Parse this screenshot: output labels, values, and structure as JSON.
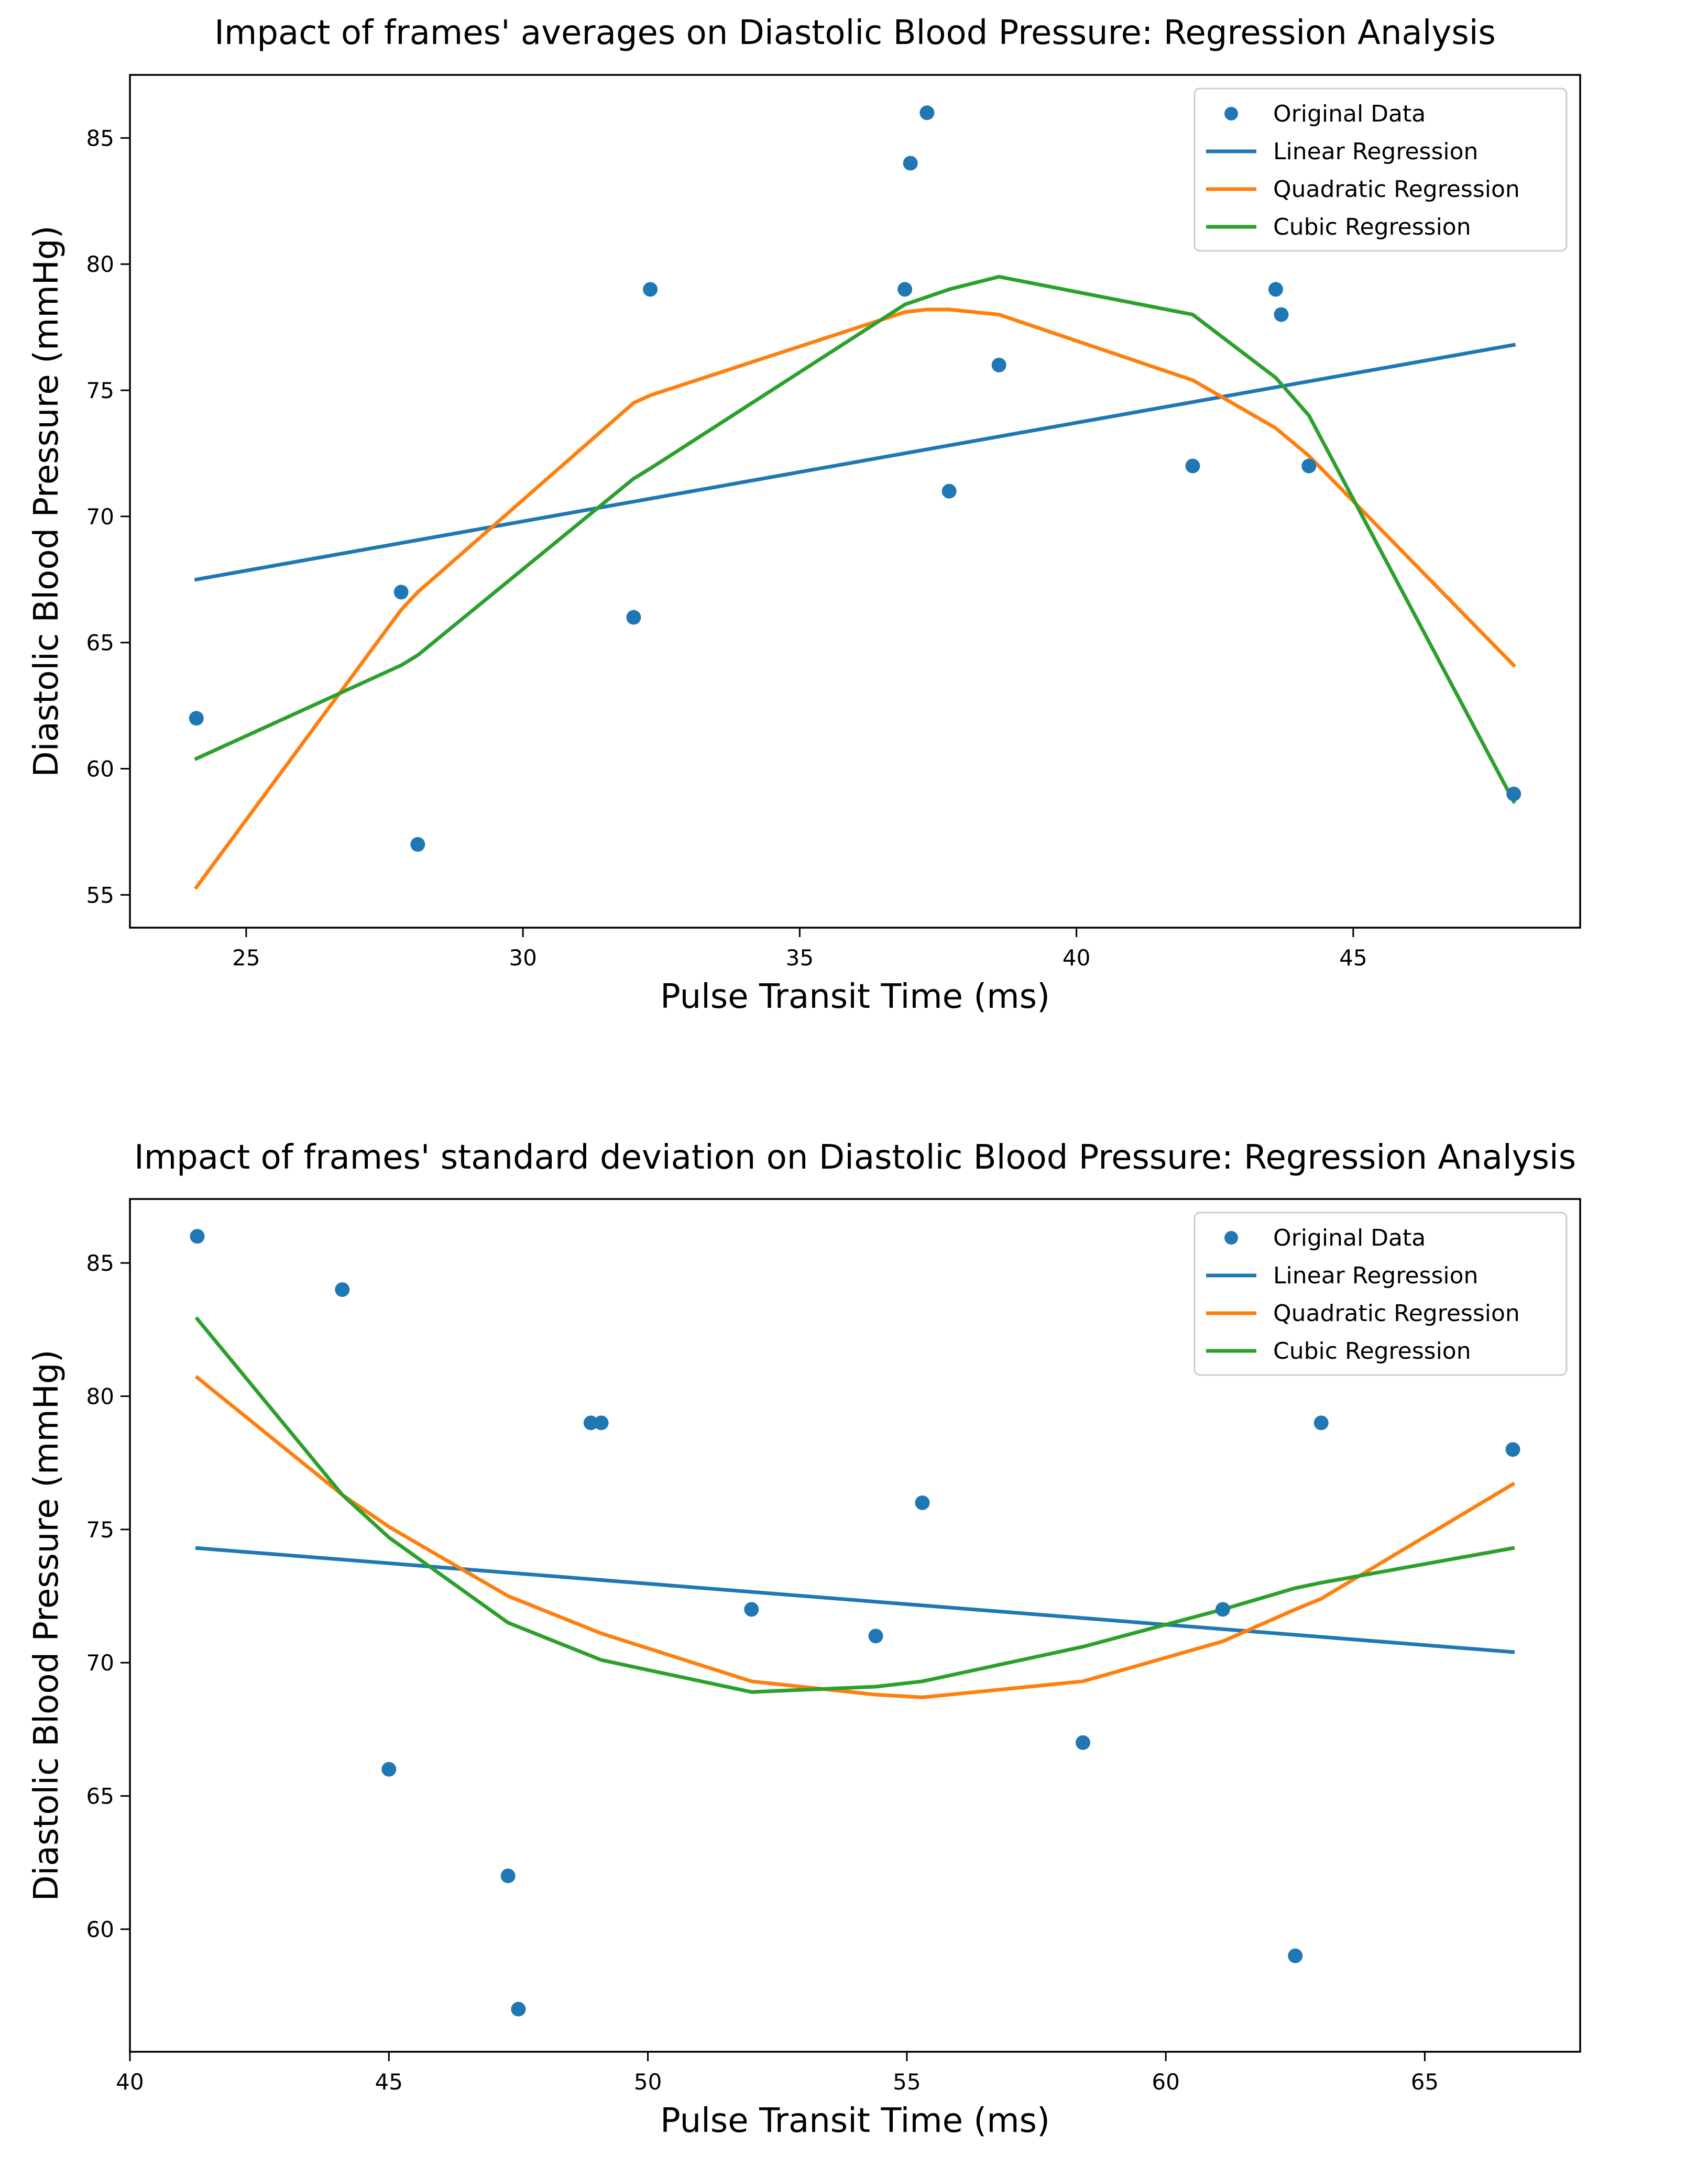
{
  "chart_data": [
    {
      "type": "scatter",
      "title": "Impact of frames' averages on Diastolic Blood Pressure: Regression Analysis",
      "xlabel": "Pulse Transit Time (ms)",
      "ylabel": "Diastolic Blood Pressure (mmHg)",
      "xlim": [
        22.9,
        49.1
      ],
      "ylim": [
        53.7,
        87.5
      ],
      "xticks": [
        25,
        30,
        35,
        40,
        45
      ],
      "yticks": [
        55,
        60,
        65,
        70,
        75,
        80,
        85
      ],
      "grid": false,
      "legend_position": "upper right",
      "legend": [
        "Original Data",
        "Linear Regression",
        "Quadratic Regression",
        "Cubic Regression"
      ],
      "colors": [
        "#1f77b4",
        "#1f77b4",
        "#ff7f0e",
        "#2ca02c"
      ],
      "scatter": {
        "name": "Original Data",
        "x": [
          24.1,
          27.8,
          28.1,
          32.0,
          32.3,
          36.9,
          37.0,
          37.3,
          37.7,
          38.6,
          42.1,
          43.6,
          43.7,
          44.2,
          47.9
        ],
        "y": [
          62,
          67,
          57,
          66,
          79,
          79,
          84,
          86,
          71,
          76,
          72,
          79,
          78,
          72,
          59
        ]
      },
      "series": [
        {
          "name": "Linear Regression",
          "x": [
            24.1,
            47.9
          ],
          "y": [
            67.5,
            76.8
          ]
        },
        {
          "name": "Quadratic Regression",
          "x": [
            24.1,
            27.8,
            28.1,
            32.0,
            32.3,
            36.9,
            37.3,
            37.7,
            38.6,
            42.1,
            43.6,
            44.2,
            47.9
          ],
          "y": [
            55.3,
            66.3,
            67.0,
            74.5,
            74.8,
            78.1,
            78.2,
            78.2,
            78.0,
            75.4,
            73.5,
            72.4,
            64.1
          ]
        },
        {
          "name": "Cubic Regression",
          "x": [
            24.1,
            27.8,
            28.1,
            32.0,
            32.3,
            36.9,
            37.3,
            37.7,
            38.6,
            42.1,
            43.6,
            44.2,
            47.9
          ],
          "y": [
            60.4,
            64.1,
            64.5,
            71.5,
            71.9,
            78.4,
            78.7,
            79.0,
            79.5,
            78.0,
            75.5,
            74.0,
            58.7
          ]
        }
      ]
    },
    {
      "type": "scatter",
      "title": "Impact of frames' standard deviation on Diastolic Blood Pressure: Regression Analysis",
      "xlabel": "Pulse Transit Time (ms)",
      "ylabel": "Diastolic Blood Pressure (mmHg)",
      "xlim": [
        40.0,
        68.0
      ],
      "ylim": [
        55.4,
        87.4
      ],
      "xticks": [
        40,
        45,
        50,
        55,
        60,
        65
      ],
      "yticks": [
        60,
        65,
        70,
        75,
        80,
        85
      ],
      "grid": false,
      "legend_position": "upper right",
      "legend": [
        "Original Data",
        "Linear Regression",
        "Quadratic Regression",
        "Cubic Regression"
      ],
      "colors": [
        "#1f77b4",
        "#1f77b4",
        "#ff7f0e",
        "#2ca02c"
      ],
      "scatter": {
        "name": "Original Data",
        "x": [
          41.3,
          44.1,
          45.0,
          47.3,
          47.5,
          48.9,
          49.1,
          52.0,
          54.4,
          55.3,
          58.4,
          61.1,
          62.5,
          63.0,
          66.7
        ],
        "y": [
          86,
          84,
          66,
          62,
          57,
          79,
          79,
          72,
          71,
          76,
          67,
          72,
          59,
          79,
          78
        ]
      },
      "series": [
        {
          "name": "Linear Regression",
          "x": [
            41.3,
            66.7
          ],
          "y": [
            74.3,
            70.4
          ]
        },
        {
          "name": "Quadratic Regression",
          "x": [
            41.3,
            44.1,
            45.0,
            47.3,
            49.1,
            52.0,
            54.4,
            55.3,
            58.4,
            61.1,
            62.5,
            63.0,
            66.7
          ],
          "y": [
            80.7,
            76.3,
            75.1,
            72.5,
            71.1,
            69.3,
            68.8,
            68.7,
            69.3,
            70.8,
            72.0,
            72.4,
            76.7
          ]
        },
        {
          "name": "Cubic Regression",
          "x": [
            41.3,
            44.1,
            45.0,
            47.3,
            49.1,
            52.0,
            54.4,
            55.3,
            58.4,
            61.1,
            62.5,
            63.0,
            66.7
          ],
          "y": [
            82.9,
            76.3,
            74.7,
            71.5,
            70.1,
            68.9,
            69.1,
            69.3,
            70.6,
            72.0,
            72.8,
            73.0,
            74.3
          ]
        }
      ]
    }
  ]
}
